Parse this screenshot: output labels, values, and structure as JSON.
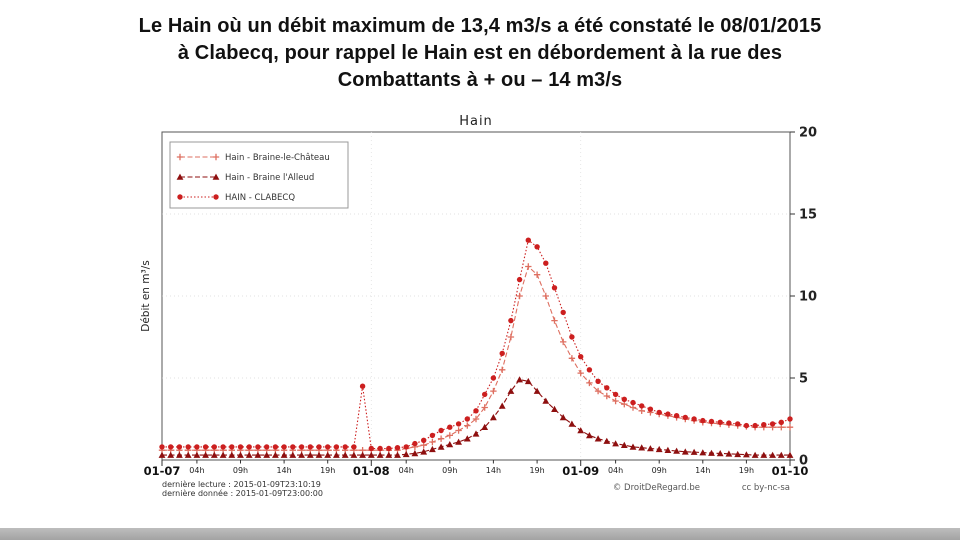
{
  "slide": {
    "title_lines": [
      "Le Hain où un débit maximum de 13,4 m3/s a été constaté le 08/01/2015",
      "à Clabecq, pour rappel le Hain est en débordement à la rue des",
      "Combattants à + ou – 14 m3/s"
    ]
  },
  "chart_data": {
    "type": "line",
    "title": "Hain",
    "xlabel": "",
    "ylabel": "Débit en m³/s",
    "ylim": [
      0,
      20
    ],
    "yticks": [
      0,
      5,
      10,
      15,
      20
    ],
    "x_unit": "hours since 2015-01-07 00:00",
    "x_step_hours": 1,
    "xlim_hours": [
      0,
      72
    ],
    "grid": "light dotted",
    "legend_position": "upper left",
    "x_day_ticks": [
      {
        "hour": 0,
        "label": "01-07"
      },
      {
        "hour": 24,
        "label": "01-08"
      },
      {
        "hour": 48,
        "label": "01-09"
      },
      {
        "hour": 72,
        "label": "01-10"
      }
    ],
    "x_hour_ticks": [
      {
        "hour": 4,
        "label": "04h"
      },
      {
        "hour": 9,
        "label": "09h"
      },
      {
        "hour": 14,
        "label": "14h"
      },
      {
        "hour": 19,
        "label": "19h"
      },
      {
        "hour": 28,
        "label": "04h"
      },
      {
        "hour": 33,
        "label": "09h"
      },
      {
        "hour": 38,
        "label": "14h"
      },
      {
        "hour": 43,
        "label": "19h"
      },
      {
        "hour": 52,
        "label": "04h"
      },
      {
        "hour": 57,
        "label": "09h"
      },
      {
        "hour": 62,
        "label": "14h"
      },
      {
        "hour": 67,
        "label": "19h"
      }
    ],
    "series": [
      {
        "name": "Hain - Braine-le-Château",
        "color": "#de6f60",
        "marker": "plus",
        "linestyle": "dashed",
        "values": [
          0.6,
          0.6,
          0.6,
          0.6,
          0.6,
          0.6,
          0.6,
          0.6,
          0.6,
          0.6,
          0.6,
          0.6,
          0.6,
          0.6,
          0.6,
          0.6,
          0.6,
          0.6,
          0.6,
          0.6,
          0.6,
          0.6,
          0.6,
          0.6,
          0.6,
          0.6,
          0.6,
          0.6,
          0.7,
          0.8,
          0.9,
          1.1,
          1.3,
          1.5,
          1.8,
          2.1,
          2.5,
          3.2,
          4.2,
          5.5,
          7.5,
          10.0,
          11.8,
          11.3,
          10.0,
          8.5,
          7.2,
          6.2,
          5.3,
          4.7,
          4.2,
          3.9,
          3.6,
          3.4,
          3.2,
          3.0,
          2.9,
          2.8,
          2.7,
          2.6,
          2.5,
          2.4,
          2.3,
          2.25,
          2.2,
          2.15,
          2.1,
          2.05,
          2.0,
          2.0,
          2.0,
          2.0,
          2.0
        ]
      },
      {
        "name": "Hain - Braine l'Alleud",
        "color": "#8e0f0f",
        "marker": "triangle",
        "linestyle": "dashed",
        "values": [
          0.3,
          0.3,
          0.3,
          0.3,
          0.3,
          0.3,
          0.3,
          0.3,
          0.3,
          0.3,
          0.3,
          0.3,
          0.3,
          0.3,
          0.3,
          0.3,
          0.3,
          0.3,
          0.3,
          0.3,
          0.3,
          0.3,
          0.3,
          0.3,
          0.3,
          0.3,
          0.3,
          0.3,
          0.35,
          0.4,
          0.5,
          0.65,
          0.8,
          0.95,
          1.1,
          1.3,
          1.6,
          2.0,
          2.6,
          3.3,
          4.2,
          4.9,
          4.8,
          4.2,
          3.6,
          3.1,
          2.6,
          2.2,
          1.8,
          1.5,
          1.3,
          1.15,
          1.0,
          0.9,
          0.8,
          0.75,
          0.7,
          0.65,
          0.6,
          0.55,
          0.5,
          0.48,
          0.45,
          0.42,
          0.4,
          0.38,
          0.35,
          0.33,
          0.3,
          0.3,
          0.3,
          0.3,
          0.3
        ]
      },
      {
        "name": "HAIN - CLABECQ",
        "color": "#cc1f1f",
        "marker": "circle",
        "linestyle": "dotted",
        "values": [
          0.8,
          0.8,
          0.8,
          0.8,
          0.8,
          0.8,
          0.8,
          0.8,
          0.8,
          0.8,
          0.8,
          0.8,
          0.8,
          0.8,
          0.8,
          0.8,
          0.8,
          0.8,
          0.8,
          0.8,
          0.8,
          0.8,
          0.8,
          4.5,
          0.7,
          0.7,
          0.7,
          0.75,
          0.8,
          1.0,
          1.2,
          1.5,
          1.8,
          2.0,
          2.2,
          2.5,
          3.0,
          4.0,
          5.0,
          6.5,
          8.5,
          11.0,
          13.4,
          13.0,
          12.0,
          10.5,
          9.0,
          7.5,
          6.3,
          5.5,
          4.8,
          4.4,
          4.0,
          3.7,
          3.5,
          3.3,
          3.1,
          2.9,
          2.8,
          2.7,
          2.6,
          2.5,
          2.4,
          2.35,
          2.3,
          2.25,
          2.2,
          2.1,
          2.1,
          2.15,
          2.2,
          2.3,
          2.5
        ]
      }
    ],
    "annotations": {
      "max_value_clabecq": 13.4,
      "max_date": "08/01/2015"
    }
  },
  "footer": {
    "last_read": "dernière lecture : 2015-01-09T23:10:19",
    "last_data": "dernière donnée : 2015-01-09T23:00:00",
    "copyright": "© DroitDeRegard.be",
    "license": "cc by-nc-sa"
  }
}
